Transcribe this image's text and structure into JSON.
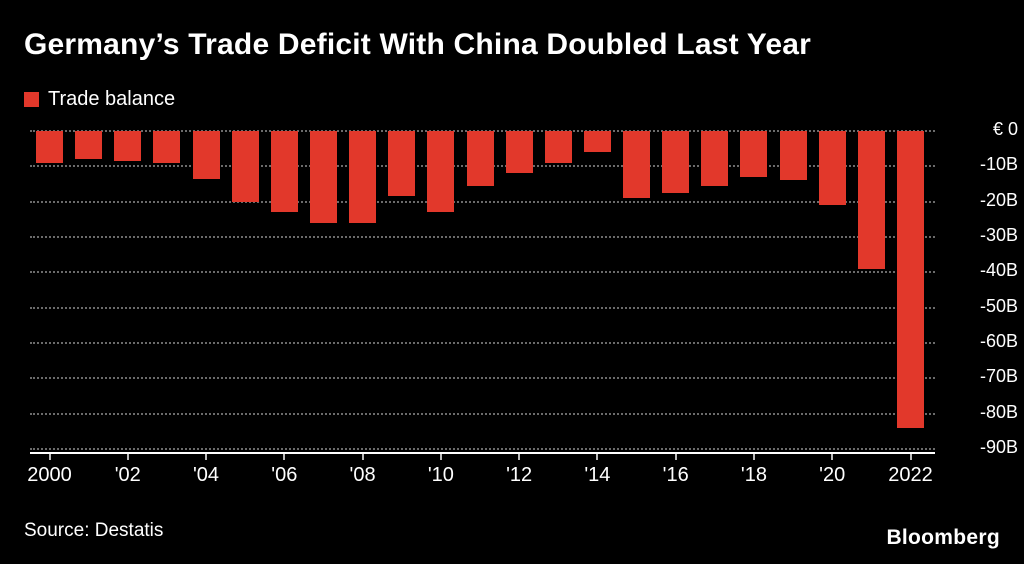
{
  "title": "Germany’s Trade Deficit With China Doubled Last Year",
  "legend": {
    "label": "Trade balance",
    "color": "#e2382b"
  },
  "source": "Source: Destatis",
  "brand": "Bloomberg",
  "colors": {
    "background": "#000000",
    "text": "#ffffff",
    "bar": "#e2382b",
    "gridline": "#6b6b6b"
  },
  "chart_data": {
    "type": "bar",
    "title": "Germany’s Trade Deficit With China Doubled Last Year",
    "series_name": "Trade balance",
    "unit": "EUR billions",
    "categories": [
      2000,
      2001,
      2002,
      2003,
      2004,
      2005,
      2006,
      2007,
      2008,
      2009,
      2010,
      2011,
      2012,
      2013,
      2014,
      2015,
      2016,
      2017,
      2018,
      2019,
      2020,
      2021,
      2022
    ],
    "values": [
      -9,
      -8,
      -8.5,
      -9,
      -13.5,
      -20,
      -23,
      -26,
      -26,
      -18.5,
      -23,
      -15.5,
      -12,
      -9,
      -6,
      -19,
      -17.5,
      -15.5,
      -13,
      -14,
      -21,
      -39,
      -84
    ],
    "x_tick_labels": [
      "2000",
      "'02",
      "'04",
      "'06",
      "'08",
      "'10",
      "'12",
      "'14",
      "'16",
      "'18",
      "'20",
      "2022"
    ],
    "x_tick_positions": [
      0,
      2,
      4,
      6,
      8,
      10,
      12,
      14,
      16,
      18,
      20,
      22
    ],
    "y_ticks": [
      "€ 0",
      "-10B",
      "-20B",
      "-30B",
      "-40B",
      "-50B",
      "-60B",
      "-70B",
      "-80B",
      "-90B"
    ],
    "y_tick_values": [
      0,
      -10,
      -20,
      -30,
      -40,
      -50,
      -60,
      -70,
      -80,
      -90
    ],
    "ylim": [
      -90,
      0
    ],
    "grid": "dotted-horizontal",
    "legend_position": "top-left",
    "y_axis_position": "right"
  }
}
